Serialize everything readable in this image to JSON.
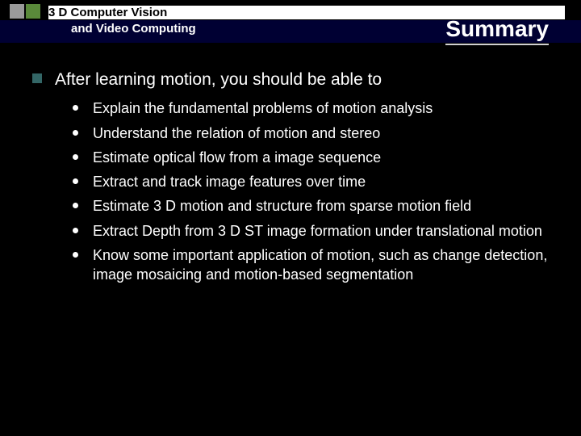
{
  "header": {
    "line1": "3 D Computer Vision",
    "line2": "and Video Computing",
    "title": "Summary"
  },
  "logo": {
    "colors": [
      "#9a9a9a",
      "#5a8a3a",
      "#c07030",
      "#b03030"
    ]
  },
  "content": {
    "main_bullet_color": "#336666",
    "main": "After learning motion, you should be able to",
    "items": [
      "Explain the fundamental problems of motion analysis",
      "Understand the relation of motion and stereo",
      "Estimate optical flow from a image sequence",
      "Extract and track image features over time",
      "Estimate 3 D motion and structure from sparse motion field",
      "Extract Depth from 3 D ST image formation under translational motion",
      "Know some important application of motion, such as change detection, image mosaicing and motion-based segmentation"
    ]
  },
  "colors": {
    "background": "#000000",
    "header_bar": "#000033",
    "text": "#ffffff",
    "title_underline": "#d0d0d0"
  }
}
